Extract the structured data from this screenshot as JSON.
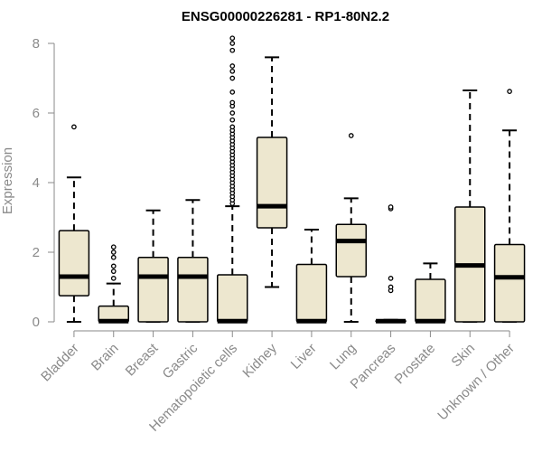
{
  "chart_data": {
    "type": "boxplot",
    "title": "ENSG00000226281 - RP1-80N2.2",
    "xlabel": "",
    "ylabel": "Expression",
    "ylim": [
      0,
      8.3
    ],
    "yticks": [
      0,
      2,
      4,
      6,
      8
    ],
    "grid": false,
    "colors": {
      "box_fill": "#ede7cf",
      "stroke": "#000000",
      "axis_text": "#8a8a8a"
    },
    "categories": [
      "Bladder",
      "Brain",
      "Breast",
      "Gastric",
      "Hematopoietic cells",
      "Kidney",
      "Liver",
      "Lung",
      "Pancreas",
      "Prostate",
      "Skin",
      "Unknown / Other"
    ],
    "boxes": [
      {
        "category": "Bladder",
        "whisker_low": 0,
        "q1": 0.75,
        "median": 1.3,
        "q3": 2.62,
        "whisker_high": 4.15,
        "outliers": [
          5.6
        ]
      },
      {
        "category": "Brain",
        "whisker_low": 0,
        "q1": 0,
        "median": 0.02,
        "q3": 0.45,
        "whisker_high": 1.1,
        "outliers": [
          1.25,
          1.45,
          1.6,
          1.85,
          2.0,
          2.15
        ]
      },
      {
        "category": "Breast",
        "whisker_low": 0,
        "q1": 0,
        "median": 1.3,
        "q3": 1.85,
        "whisker_high": 3.2,
        "outliers": []
      },
      {
        "category": "Gastric",
        "whisker_low": 0,
        "q1": 0,
        "median": 1.3,
        "q3": 1.85,
        "whisker_high": 3.5,
        "outliers": []
      },
      {
        "category": "Hematopoietic cells",
        "whisker_low": 0,
        "q1": 0,
        "median": 0.02,
        "q3": 1.35,
        "whisker_high": 3.32,
        "outliers": [
          3.4,
          3.5,
          3.6,
          3.7,
          3.8,
          3.9,
          4.0,
          4.1,
          4.2,
          4.3,
          4.4,
          4.5,
          4.6,
          4.7,
          4.8,
          4.9,
          5.0,
          5.1,
          5.2,
          5.3,
          5.4,
          5.5,
          5.6,
          5.8,
          6.0,
          6.2,
          6.3,
          6.6,
          7.0,
          7.2,
          7.35,
          7.8,
          8.0,
          8.15
        ]
      },
      {
        "category": "Kidney",
        "whisker_low": 1.0,
        "q1": 2.7,
        "median": 3.32,
        "q3": 5.3,
        "whisker_high": 7.6,
        "outliers": []
      },
      {
        "category": "Liver",
        "whisker_low": 0,
        "q1": 0,
        "median": 0.02,
        "q3": 1.65,
        "whisker_high": 2.65,
        "outliers": []
      },
      {
        "category": "Lung",
        "whisker_low": 0,
        "q1": 1.3,
        "median": 2.32,
        "q3": 2.8,
        "whisker_high": 3.55,
        "outliers": [
          5.35
        ]
      },
      {
        "category": "Pancreas",
        "whisker_low": 0,
        "q1": 0,
        "median": 0.02,
        "q3": 0.04,
        "whisker_high": 0.06,
        "outliers": [
          0.9,
          1.0,
          1.25,
          3.25,
          3.3
        ]
      },
      {
        "category": "Prostate",
        "whisker_low": 0,
        "q1": 0,
        "median": 0.02,
        "q3": 1.22,
        "whisker_high": 1.68,
        "outliers": []
      },
      {
        "category": "Skin",
        "whisker_low": 0,
        "q1": 0,
        "median": 1.62,
        "q3": 3.3,
        "whisker_high": 6.65,
        "outliers": []
      },
      {
        "category": "Unknown / Other",
        "whisker_low": 0,
        "q1": 0,
        "median": 1.28,
        "q3": 2.22,
        "whisker_high": 5.5,
        "outliers": [
          6.62
        ]
      }
    ]
  }
}
